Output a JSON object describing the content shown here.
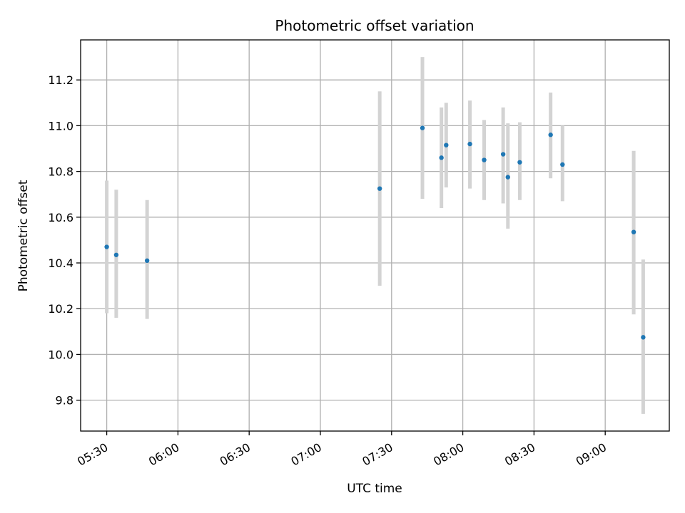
{
  "chart_data": {
    "type": "scatter",
    "title": "Photometric offset variation",
    "xlabel": "UTC time",
    "ylabel": "Photometric offset",
    "x_tick_labels": [
      "05:30",
      "06:00",
      "06:30",
      "07:00",
      "07:30",
      "08:00",
      "08:30",
      "09:00"
    ],
    "x_tick_minutes": [
      330,
      360,
      390,
      420,
      450,
      480,
      510,
      540
    ],
    "xlim": [
      "05:19",
      "09:27"
    ],
    "y_ticks": [
      9.8,
      10.0,
      10.2,
      10.4,
      10.6,
      10.8,
      11.0,
      11.2
    ],
    "y_tick_labels": [
      "9.8",
      "10.0",
      "10.2",
      "10.4",
      "10.6",
      "10.8",
      "11.0",
      "11.2"
    ],
    "ylim": [
      9.665,
      11.375
    ],
    "grid": true,
    "marker_color": "#1f77b4",
    "errorbar_color": "#d3d3d3",
    "grid_color": "#b0b0b0",
    "points": [
      {
        "time": "05:30",
        "y": 10.47,
        "err_low": 10.18,
        "err_high": 10.76
      },
      {
        "time": "05:34",
        "y": 10.435,
        "err_low": 10.16,
        "err_high": 10.72
      },
      {
        "time": "05:47",
        "y": 10.41,
        "err_low": 10.155,
        "err_high": 10.675
      },
      {
        "time": "07:25",
        "y": 10.725,
        "err_low": 10.3,
        "err_high": 11.15
      },
      {
        "time": "07:43",
        "y": 10.99,
        "err_low": 10.68,
        "err_high": 11.3
      },
      {
        "time": "07:51",
        "y": 10.86,
        "err_low": 10.64,
        "err_high": 11.08
      },
      {
        "time": "07:53",
        "y": 10.915,
        "err_low": 10.73,
        "err_high": 11.1
      },
      {
        "time": "08:03",
        "y": 10.92,
        "err_low": 10.725,
        "err_high": 11.11
      },
      {
        "time": "08:09",
        "y": 10.85,
        "err_low": 10.675,
        "err_high": 11.025
      },
      {
        "time": "08:17",
        "y": 10.875,
        "err_low": 10.66,
        "err_high": 11.08
      },
      {
        "time": "08:19",
        "y": 10.775,
        "err_low": 10.55,
        "err_high": 11.01
      },
      {
        "time": "08:24",
        "y": 10.84,
        "err_low": 10.675,
        "err_high": 11.015
      },
      {
        "time": "08:37",
        "y": 10.96,
        "err_low": 10.77,
        "err_high": 11.145
      },
      {
        "time": "08:42",
        "y": 10.83,
        "err_low": 10.67,
        "err_high": 11.0
      },
      {
        "time": "09:12",
        "y": 10.535,
        "err_low": 10.175,
        "err_high": 10.89
      },
      {
        "time": "09:16",
        "y": 10.075,
        "err_low": 9.74,
        "err_high": 10.415
      }
    ]
  }
}
